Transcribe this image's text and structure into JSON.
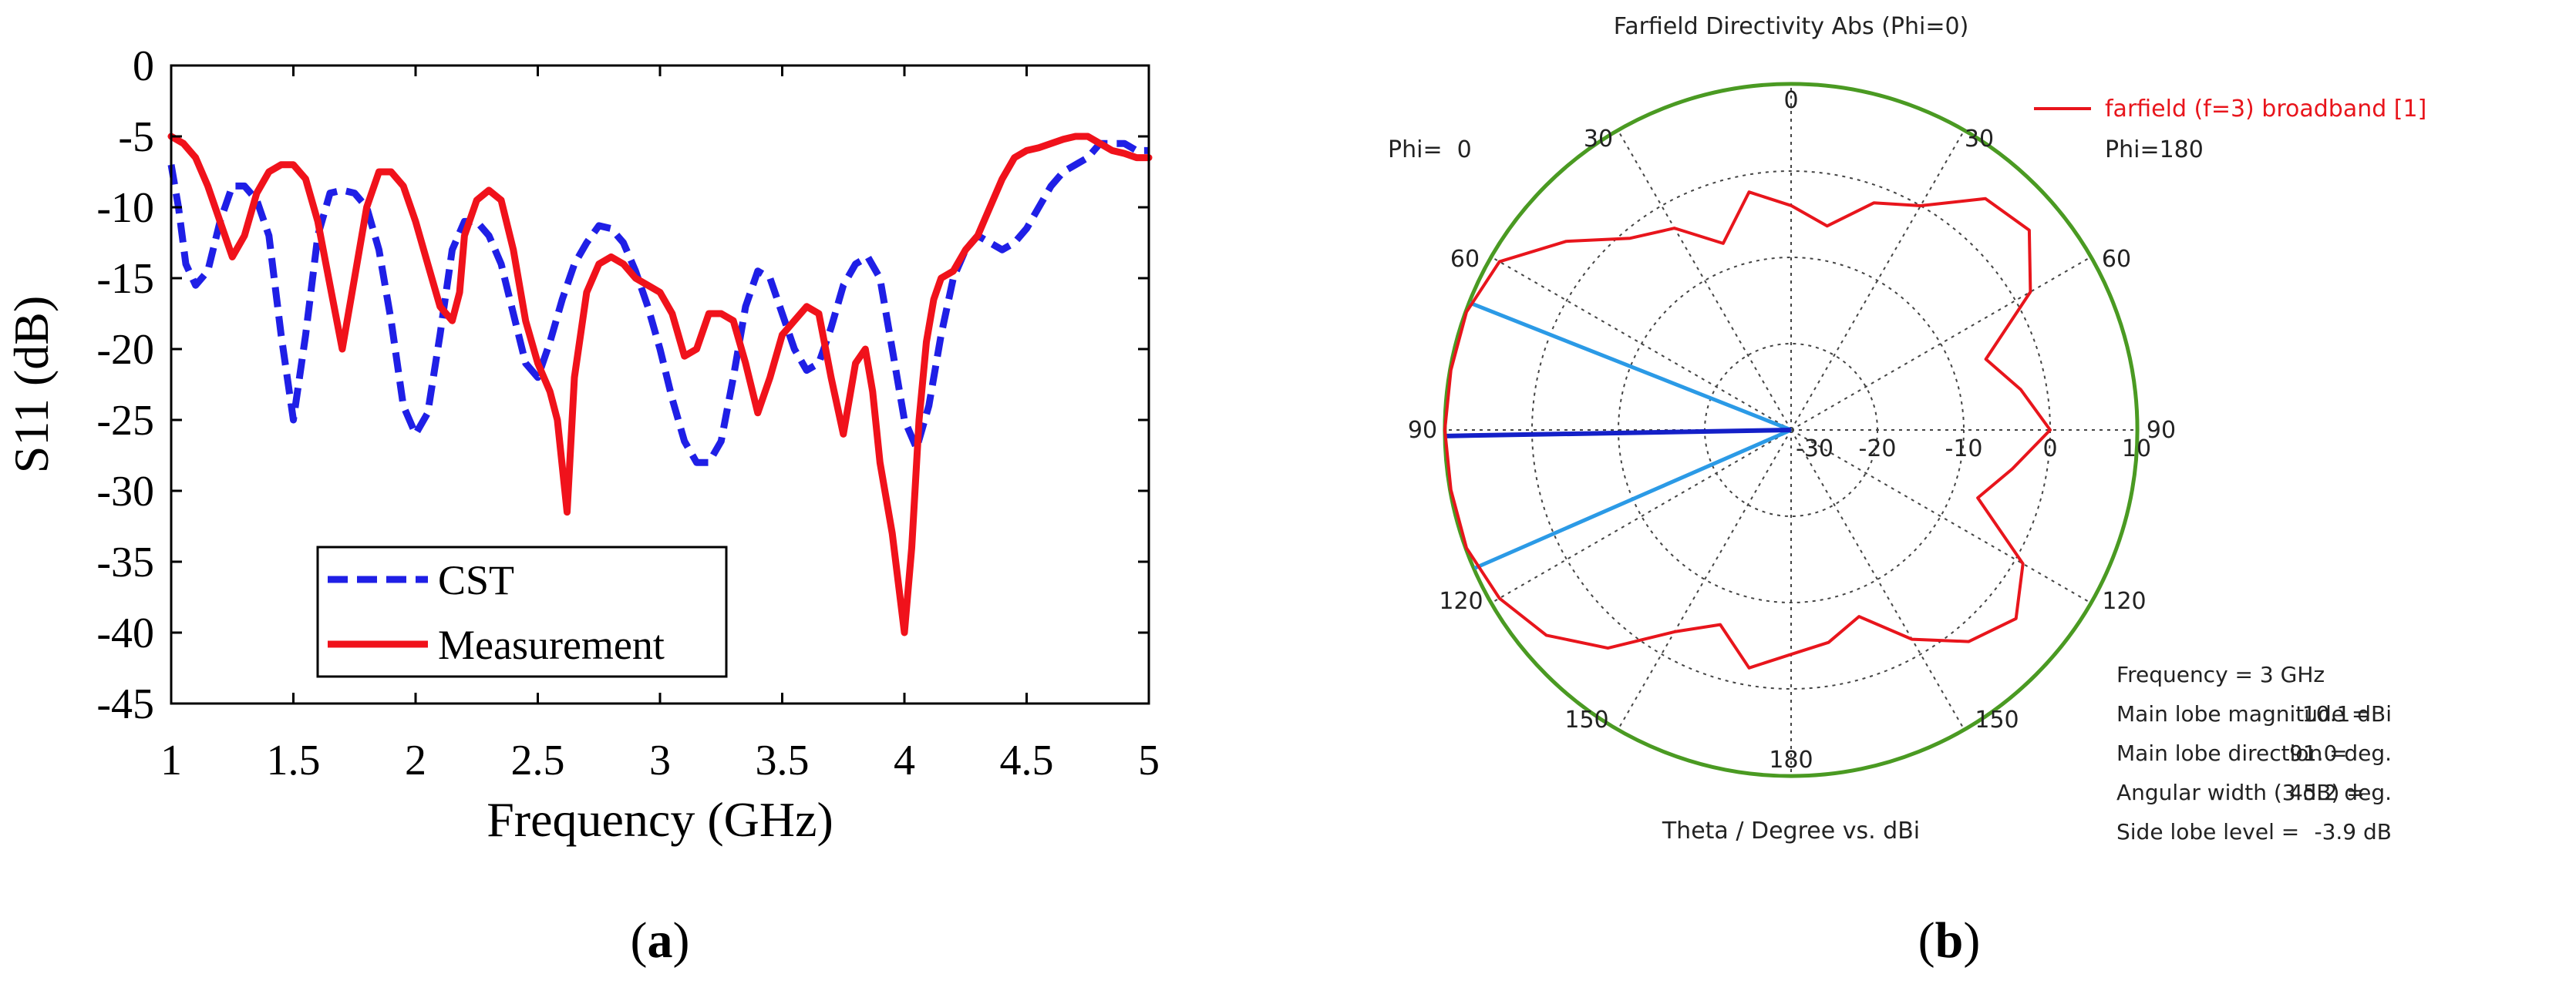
{
  "panel_labels": {
    "a": "a",
    "b": "b",
    "open": "(",
    "close": ")"
  },
  "chart_data": [
    {
      "type": "line",
      "id": "a",
      "title": "",
      "xlabel": "Frequency (GHz)",
      "ylabel": "S11 (dB)",
      "xlim": [
        1,
        5
      ],
      "ylim": [
        -45,
        0
      ],
      "xticks": [
        1,
        1.5,
        2,
        2.5,
        3,
        3.5,
        4,
        4.5,
        5
      ],
      "xtick_labels": [
        "1",
        "1.5",
        "2",
        "2.5",
        "3",
        "3.5",
        "4",
        "4.5",
        "5"
      ],
      "yticks": [
        0,
        -5,
        -10,
        -15,
        -20,
        -25,
        -30,
        -35,
        -40,
        -45
      ],
      "ytick_labels": [
        "0",
        "-5",
        "-10",
        "-15",
        "-20",
        "-25",
        "-30",
        "-35",
        "-40",
        "-45"
      ],
      "grid": false,
      "legend": "bottom-left",
      "series": [
        {
          "name": "CST",
          "color": "#1f1fe6",
          "style": "dashed",
          "x": [
            1.0,
            1.03,
            1.06,
            1.1,
            1.15,
            1.2,
            1.25,
            1.3,
            1.35,
            1.4,
            1.45,
            1.5,
            1.55,
            1.6,
            1.65,
            1.7,
            1.75,
            1.8,
            1.85,
            1.9,
            1.95,
            2.0,
            2.05,
            2.1,
            2.15,
            2.2,
            2.25,
            2.3,
            2.35,
            2.4,
            2.45,
            2.5,
            2.55,
            2.6,
            2.65,
            2.7,
            2.75,
            2.8,
            2.85,
            2.9,
            2.95,
            3.0,
            3.05,
            3.1,
            3.15,
            3.2,
            3.25,
            3.3,
            3.35,
            3.4,
            3.45,
            3.5,
            3.55,
            3.6,
            3.65,
            3.7,
            3.75,
            3.8,
            3.85,
            3.9,
            3.95,
            4.0,
            4.05,
            4.1,
            4.15,
            4.2,
            4.25,
            4.3,
            4.35,
            4.4,
            4.45,
            4.5,
            4.55,
            4.6,
            4.65,
            4.7,
            4.75,
            4.8,
            4.85,
            4.9,
            4.95,
            5.0
          ],
          "y": [
            -7,
            -10,
            -14,
            -15.5,
            -14.5,
            -11,
            -8.5,
            -8.5,
            -9.5,
            -12,
            -19,
            -25,
            -19,
            -12,
            -9,
            -8.8,
            -9,
            -10,
            -13,
            -18,
            -24,
            -26,
            -24.5,
            -19,
            -13,
            -11,
            -11,
            -12,
            -14,
            -17.5,
            -21,
            -22,
            -19.5,
            -16.5,
            -14,
            -12.5,
            -11.3,
            -11.5,
            -12.5,
            -14.5,
            -17,
            -20,
            -23.5,
            -26.5,
            -28,
            -28,
            -26.5,
            -22,
            -17,
            -14.5,
            -15,
            -17.5,
            -20,
            -21.5,
            -21,
            -18.5,
            -15.5,
            -14,
            -13.5,
            -15,
            -20,
            -25,
            -27,
            -24,
            -19,
            -15,
            -13,
            -12,
            -12.5,
            -13,
            -12.5,
            -11.5,
            -10,
            -8.5,
            -7.5,
            -7,
            -6.5,
            -5.5,
            -5.5,
            -5.5,
            -6,
            -6
          ]
        },
        {
          "name": "Measurement",
          "color": "#f0121b",
          "style": "solid",
          "x": [
            1.0,
            1.05,
            1.1,
            1.15,
            1.2,
            1.25,
            1.3,
            1.35,
            1.4,
            1.45,
            1.5,
            1.55,
            1.6,
            1.65,
            1.7,
            1.75,
            1.8,
            1.85,
            1.9,
            1.95,
            2.0,
            2.05,
            2.1,
            2.15,
            2.18,
            2.2,
            2.25,
            2.3,
            2.35,
            2.4,
            2.45,
            2.5,
            2.55,
            2.58,
            2.62,
            2.65,
            2.7,
            2.75,
            2.8,
            2.85,
            2.9,
            2.95,
            3.0,
            3.05,
            3.1,
            3.15,
            3.2,
            3.25,
            3.3,
            3.35,
            3.4,
            3.45,
            3.5,
            3.55,
            3.6,
            3.65,
            3.7,
            3.75,
            3.8,
            3.84,
            3.87,
            3.9,
            3.95,
            4.0,
            4.03,
            4.06,
            4.09,
            4.12,
            4.15,
            4.2,
            4.25,
            4.3,
            4.35,
            4.4,
            4.45,
            4.5,
            4.55,
            4.6,
            4.65,
            4.7,
            4.75,
            4.8,
            4.85,
            4.9,
            4.95,
            5.0
          ],
          "y": [
            -5,
            -5.5,
            -6.5,
            -8.5,
            -11,
            -13.5,
            -12,
            -9,
            -7.5,
            -7,
            -7,
            -8,
            -11,
            -15.5,
            -20,
            -15,
            -10,
            -7.5,
            -7.5,
            -8.5,
            -11,
            -14,
            -17,
            -18,
            -16,
            -12,
            -9.5,
            -8.8,
            -9.5,
            -13,
            -18,
            -21,
            -23,
            -25,
            -31.5,
            -22,
            -16,
            -14,
            -13.5,
            -14,
            -15,
            -15.5,
            -16,
            -17.5,
            -20.5,
            -20,
            -17.5,
            -17.5,
            -18,
            -21,
            -24.5,
            -22,
            -19,
            -18,
            -17,
            -17.5,
            -22,
            -26,
            -21,
            -20,
            -23,
            -28,
            -33,
            -40,
            -34,
            -25,
            -19.5,
            -16.5,
            -15,
            -14.5,
            -13,
            -12,
            -10,
            -8,
            -6.5,
            -6,
            -5.8,
            -5.5,
            -5.2,
            -5,
            -5,
            -5.5,
            -6,
            -6.2,
            -6.5,
            -6.5
          ]
        }
      ]
    },
    {
      "type": "polar",
      "id": "b",
      "title": "Farfield Directivity Abs (Phi=0)",
      "xlabel": "Theta / Degree vs. dBi",
      "radial_range_dBi": [
        -30,
        10
      ],
      "radial_tick_labels": [
        "-30",
        "-20",
        "-10",
        "0",
        "10"
      ],
      "angle_labels": {
        "top": "0",
        "r30": "30",
        "r60": "60",
        "r90": "90",
        "r120": "120",
        "r150": "150",
        "bottom": "180",
        "l30": "30",
        "l60": "60",
        "l90": "90",
        "l120": "120",
        "l150": "150"
      },
      "phi_left": "Phi=  0",
      "phi_right": "Phi=180",
      "legend": "farfield (f=3) broadband [1]",
      "legend_position": "top-right",
      "colors": {
        "pattern": "#e8151c",
        "main_lobe_ring": "#4a9a22",
        "beam_lines": "#2b9ae6",
        "main_dir": "#1420c8",
        "grid": "#444444"
      },
      "main_lobe_level_dBi": 10.1,
      "main_lobe_direction_deg": 91.0,
      "beamwidth_edges_deg": [
        68.4,
        113.6
      ],
      "pattern_right": {
        "theta": [
          0,
          10,
          20,
          30,
          40,
          50,
          60,
          70,
          80,
          90,
          100,
          110,
          120,
          130,
          140,
          150,
          160,
          170,
          180
        ],
        "dBi": [
          -4,
          -6,
          -2,
          0,
          5,
          6,
          2,
          -6,
          -3,
          0,
          -4,
          -7,
          1,
          4,
          2,
          -2,
          -7,
          -5,
          -4
        ]
      },
      "pattern_left": {
        "theta": [
          0,
          10,
          20,
          30,
          40,
          50,
          60,
          70,
          80,
          90,
          100,
          110,
          120,
          130,
          140,
          150,
          160,
          170,
          180
        ],
        "dBi": [
          -4,
          -2,
          -7,
          -3,
          -1,
          4,
          9,
          10,
          10,
          10.1,
          10,
          10,
          9,
          7,
          3,
          -3,
          -6,
          -2,
          -4
        ]
      },
      "info": {
        "frequency_label": "Frequency = 3 GHz",
        "magnitude_label": "Main lobe magnitude =",
        "magnitude_value": "10.1 dBi",
        "direction_label": "Main lobe direction =",
        "direction_value": "91.0 deg.",
        "width_label": "Angular width (3 dB) =",
        "width_value": "45.2 deg.",
        "sidelobe_label": "Side lobe level =",
        "sidelobe_value": "-3.9 dB"
      }
    }
  ]
}
